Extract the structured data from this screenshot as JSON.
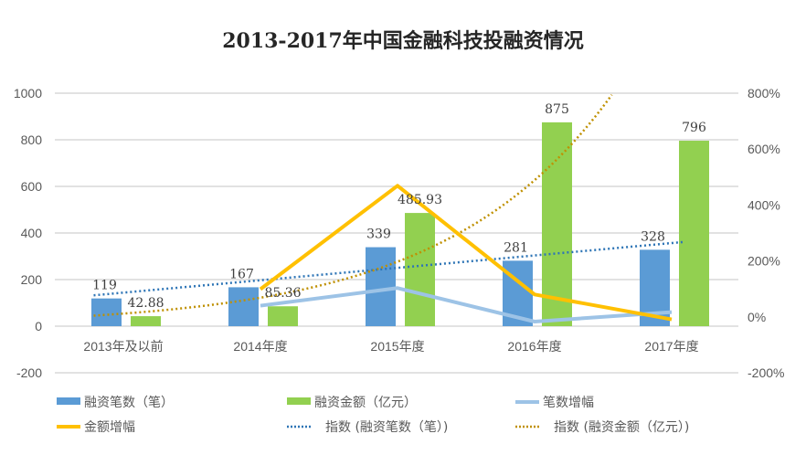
{
  "chart_data": {
    "type": "bar",
    "title": "2013-2017年中国金融科技投融资情况",
    "categories": [
      "2013年及以前",
      "2014年度",
      "2015年度",
      "2016年度",
      "2017年度"
    ],
    "ylim": [
      -200,
      1000
    ],
    "yticks": [
      "1000",
      "800",
      "600",
      "400",
      "200",
      "0",
      "-200"
    ],
    "y2lim": [
      -200,
      800
    ],
    "y2ticks": [
      "800%",
      "600%",
      "400%",
      "200%",
      "0%",
      "-200%"
    ],
    "grid": true,
    "legend": "bottom",
    "series": [
      {
        "name": "融资笔数（笔）",
        "type": "bar",
        "axis": "left",
        "color": "#5B9BD5",
        "values": [
          119,
          167,
          339,
          281,
          328
        ],
        "labels": [
          "119",
          "167",
          "339",
          "281",
          "328"
        ]
      },
      {
        "name": "融资金额（亿元）",
        "type": "bar",
        "axis": "left",
        "color": "#92D050",
        "values": [
          42.88,
          85.36,
          485.93,
          875,
          796
        ],
        "labels": [
          "42.88",
          "85.36",
          "485.93",
          "875",
          "796"
        ]
      },
      {
        "name": "笔数增幅",
        "type": "line",
        "axis": "right",
        "color": "#9DC3E6",
        "values": [
          null,
          40,
          103,
          -17,
          17
        ]
      },
      {
        "name": "金额增幅",
        "type": "line",
        "axis": "right",
        "color": "#FFC000",
        "values": [
          null,
          99,
          469,
          80,
          -9
        ]
      },
      {
        "name": "指数 (融资笔数（笔）)",
        "type": "trend-linear",
        "of": 0,
        "color": "#2E75B6"
      },
      {
        "name": "指数 (融资金额（亿元）)",
        "type": "trend-exponential",
        "of": 1,
        "color": "#BF9000"
      }
    ]
  }
}
